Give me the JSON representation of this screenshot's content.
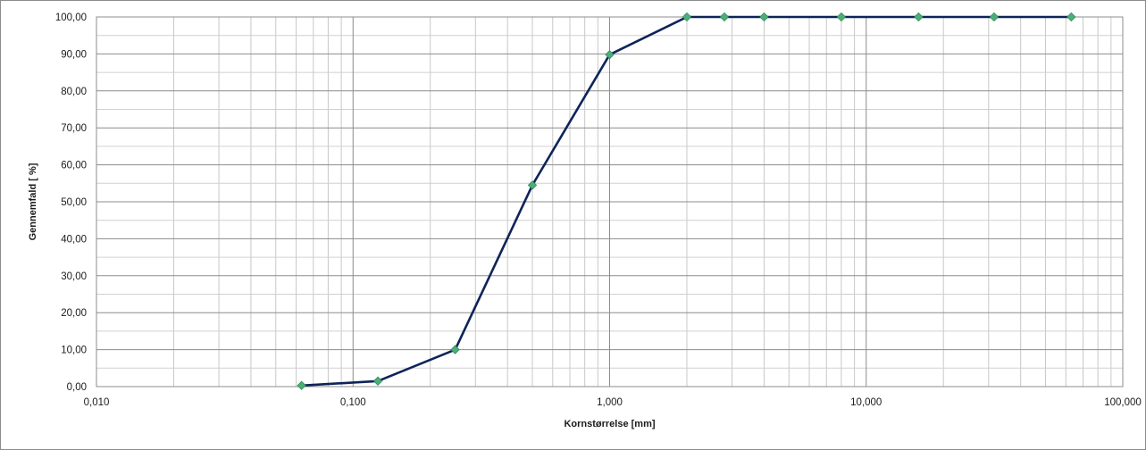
{
  "chart_data": {
    "type": "line",
    "title": "",
    "xlabel": "Kornstørrelse [mm]",
    "ylabel": "Gennemfald [ %]",
    "x_scale": "log",
    "xlim": [
      0.01,
      100
    ],
    "ylim": [
      0,
      100
    ],
    "x_ticks": [
      0.01,
      0.1,
      1,
      10,
      100
    ],
    "x_tick_labels": [
      "0,010",
      "0,100",
      "1,000",
      "10,000",
      "100,000"
    ],
    "y_ticks": [
      0,
      10,
      20,
      30,
      40,
      50,
      60,
      70,
      80,
      90,
      100
    ],
    "y_tick_labels": [
      "0,00",
      "10,00",
      "20,00",
      "30,00",
      "40,00",
      "50,00",
      "60,00",
      "70,00",
      "80,00",
      "90,00",
      "100,00"
    ],
    "grid": true,
    "legend": "none",
    "series": [
      {
        "x": [
          0.063,
          0.125,
          0.25,
          0.5,
          1,
          2,
          2.8,
          4,
          8,
          16,
          31.5,
          63
        ],
        "y": [
          0.3,
          1.5,
          10.0,
          54.5,
          89.8,
          100,
          100,
          100,
          100,
          100,
          100,
          100
        ],
        "line_color": "#0d2458",
        "marker": "diamond",
        "marker_color": "#4caf7a"
      }
    ]
  }
}
